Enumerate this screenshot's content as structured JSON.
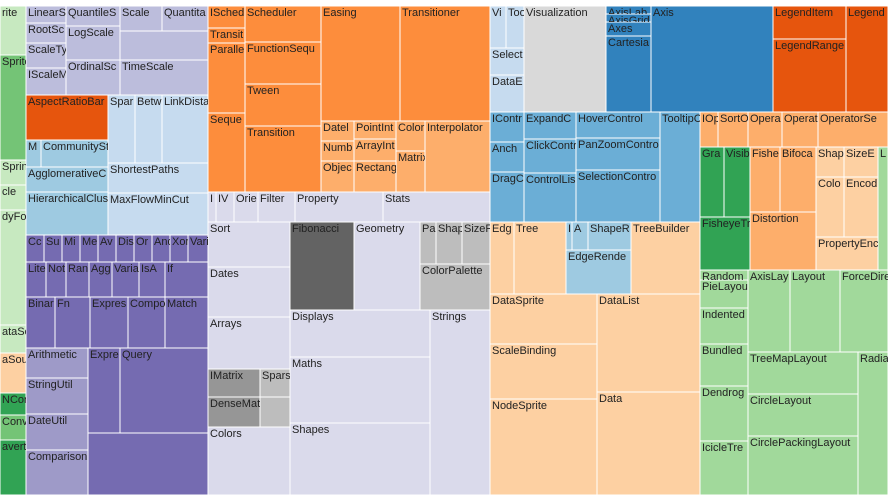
{
  "chart_data": {
    "type": "treemap",
    "nodes": [
      {
        "label": "rite",
        "color": "#c7e9c0",
        "value": 1274
      },
      {
        "label": "Sprite",
        "color": "#74c476",
        "value": 2730
      },
      {
        "label": "Spring",
        "color": "#c7e9c0",
        "value": 650
      },
      {
        "label": "cle",
        "color": "#c7e9c0",
        "value": 650
      },
      {
        "label": "dyFo",
        "color": "#c7e9c0",
        "value": 2990
      },
      {
        "label": "ataSo",
        "color": "#c7e9c0",
        "value": 728
      },
      {
        "label": "aSou",
        "color": "#fdd0a2",
        "value": 1040
      },
      {
        "label": "NCon",
        "color": "#31a354",
        "value": 572
      },
      {
        "label": "Conv",
        "color": "#74c476",
        "value": 650
      },
      {
        "label": "averte",
        "color": "#31a354",
        "value": 1430
      },
      {
        "label": "LinearS",
        "color": "#bcbddc",
        "value": 680
      },
      {
        "label": "RootSc",
        "color": "#bcbddc",
        "value": 800
      },
      {
        "label": "ScaleTy",
        "color": "#bcbddc",
        "value": 1000
      },
      {
        "label": "IScaleM",
        "color": "#bcbddc",
        "value": 1080
      },
      {
        "label": "QuantileS",
        "color": "#bcbddc",
        "value": 1080
      },
      {
        "label": "LogScale",
        "color": "#bcbddc",
        "value": 1836
      },
      {
        "label": "OrdinalSc",
        "color": "#bcbddc",
        "value": 1890
      },
      {
        "label": "Scale",
        "color": "#bcbddc",
        "value": 1050
      },
      {
        "label": "Quantita",
        "color": "#bcbddc",
        "value": 1150
      },
      {
        "label": "TimeScale",
        "color": "#bcbddc",
        "value": 3080
      },
      {
        "label": "AspectRatioBar",
        "color": "#e6550d",
        "value": 3690
      },
      {
        "label": "Spar",
        "color": "#c6dbef",
        "value": 1836
      },
      {
        "label": "Betw",
        "color": "#c6dbef",
        "value": 1836
      },
      {
        "label": "LinkDista",
        "color": "#c6dbef",
        "value": 3128
      },
      {
        "label": "ShortestPaths",
        "color": "#c6dbef",
        "value": 3000
      },
      {
        "label": "MaxFlowMinCut",
        "color": "#c6dbef",
        "value": 4200
      },
      {
        "label": "M",
        "color": "#9ecae1",
        "value": 405
      },
      {
        "label": "CommunitySt",
        "color": "#9ecae1",
        "value": 1809
      },
      {
        "label": "AgglomerativeC",
        "color": "#9ecae1",
        "value": 2050
      },
      {
        "label": "HierarchicalClus",
        "color": "#9ecae1",
        "value": 3526
      },
      {
        "label": "Cc",
        "color": "#756bb1",
        "value": 486
      },
      {
        "label": "Su",
        "color": "#756bb1",
        "value": 486
      },
      {
        "label": "Mi",
        "color": "#756bb1",
        "value": 486
      },
      {
        "label": "Me",
        "color": "#756bb1",
        "value": 486
      },
      {
        "label": "Av",
        "color": "#756bb1",
        "value": 486
      },
      {
        "label": "Dis",
        "color": "#756bb1",
        "value": 486
      },
      {
        "label": "Or",
        "color": "#756bb1",
        "value": 486
      },
      {
        "label": "And",
        "color": "#756bb1",
        "value": 486
      },
      {
        "label": "Xor",
        "color": "#756bb1",
        "value": 486
      },
      {
        "label": "Vari",
        "color": "#756bb1",
        "value": 540
      },
      {
        "label": "Lite",
        "color": "#756bb1",
        "value": 700
      },
      {
        "label": "Not",
        "color": "#756bb1",
        "value": 700
      },
      {
        "label": "Ran",
        "color": "#756bb1",
        "value": 805
      },
      {
        "label": "Agg",
        "color": "#756bb1",
        "value": 805
      },
      {
        "label": "Varia",
        "color": "#756bb1",
        "value": 945
      },
      {
        "label": "IsA",
        "color": "#756bb1",
        "value": 910
      },
      {
        "label": "If",
        "color": "#756bb1",
        "value": 1505
      },
      {
        "label": "Binar",
        "color": "#756bb1",
        "value": 1479
      },
      {
        "label": "Fn",
        "color": "#756bb1",
        "value": 1785
      },
      {
        "label": "Expres",
        "color": "#756bb1",
        "value": 1938
      },
      {
        "label": "Compo",
        "color": "#756bb1",
        "value": 1887
      },
      {
        "label": "Match",
        "color": "#756bb1",
        "value": 2193
      },
      {
        "label": "Arithmetic",
        "color": "#9e9ac8",
        "value": 1860
      },
      {
        "label": "StringUtil",
        "color": "#9e9ac8",
        "value": 2232
      },
      {
        "label": "DateUtil",
        "color": "#9e9ac8",
        "value": 2232
      },
      {
        "label": "Comparison",
        "color": "#9e9ac8",
        "value": 2790
      },
      {
        "label": "Expre",
        "color": "#756bb1",
        "value": 2720
      },
      {
        "label": "Query",
        "color": "#756bb1",
        "value": 7480
      },
      {
        "label": "ISched",
        "color": "#fd8d3c",
        "value": 814
      },
      {
        "label": "Transit",
        "color": "#fd8d3c",
        "value": 555
      },
      {
        "label": "Paralle",
        "color": "#fd8d3c",
        "value": 2590
      },
      {
        "label": "Seque",
        "color": "#fd8d3c",
        "value": 2923
      },
      {
        "label": "Scheduler",
        "color": "#fd8d3c",
        "value": 2736
      },
      {
        "label": "FunctionSequ",
        "color": "#fd8d3c",
        "value": 3192
      },
      {
        "label": "Tween",
        "color": "#fd8d3c",
        "value": 3192
      },
      {
        "label": "Transition",
        "color": "#fd8d3c",
        "value": 5016
      },
      {
        "label": "Easing",
        "color": "#fd8d3c",
        "value": 9085
      },
      {
        "label": "Transitioner",
        "color": "#fd8d3c",
        "value": 10350
      },
      {
        "label": "Datel",
        "color": "#fdae6b",
        "value": 660
      },
      {
        "label": "Numb",
        "color": "#fdae6b",
        "value": 660
      },
      {
        "label": "Objec",
        "color": "#fdae6b",
        "value": 1023
      },
      {
        "label": "PointInt",
        "color": "#fdae6b",
        "value": 756
      },
      {
        "label": "ArrayInt",
        "color": "#fdae6b",
        "value": 924
      },
      {
        "label": "Rectang",
        "color": "#fdae6b",
        "value": 1302
      },
      {
        "label": "ColorI",
        "color": "#fdae6b",
        "value": 870
      },
      {
        "label": "Matrix",
        "color": "#fdae6b",
        "value": 1189
      },
      {
        "label": "Interpolator",
        "color": "#fdae6b",
        "value": 4615
      },
      {
        "label": "I",
        "color": "#dadaeb",
        "value": 240
      },
      {
        "label": "IV",
        "color": "#dadaeb",
        "value": 540
      },
      {
        "label": "Orie",
        "color": "#dadaeb",
        "value": 720
      },
      {
        "label": "Filter",
        "color": "#dadaeb",
        "value": 1110
      },
      {
        "label": "Property",
        "color": "#dadaeb",
        "value": 2640
      },
      {
        "label": "Stats",
        "color": "#dadaeb",
        "value": 3210
      },
      {
        "label": "Sort",
        "color": "#dadaeb",
        "value": 3690
      },
      {
        "label": "Dates",
        "color": "#dadaeb",
        "value": 4100
      },
      {
        "label": "Arrays",
        "color": "#dadaeb",
        "value": 4264
      },
      {
        "label": "IMatrix",
        "color": "#969696",
        "value": 1456
      },
      {
        "label": "Spars",
        "color": "#bdbdbd",
        "value": 840
      },
      {
        "label": "DenseMat",
        "color": "#969696",
        "value": 1560
      },
      {
        "label": "Colors",
        "color": "#dadaeb",
        "value": 5576
      },
      {
        "label": "Fibonacci",
        "color": "#636363",
        "value": 5632
      },
      {
        "label": "Geometry",
        "color": "#dadaeb",
        "value": 5808
      },
      {
        "label": "Pa",
        "color": "#bdbdbd",
        "value": 672
      },
      {
        "label": "Shap",
        "color": "#bdbdbd",
        "value": 1092
      },
      {
        "label": "SizeF",
        "color": "#bdbdbd",
        "value": 1176
      },
      {
        "label": "ColorPalette",
        "color": "#bdbdbd",
        "value": 3220
      },
      {
        "label": "Displays",
        "color": "#dadaeb",
        "value": 6580
      },
      {
        "label": "Maths",
        "color": "#dadaeb",
        "value": 9240
      },
      {
        "label": "Shapes",
        "color": "#dadaeb",
        "value": 10080
      },
      {
        "label": "Strings",
        "color": "#dadaeb",
        "value": 11100
      },
      {
        "label": "Vi",
        "color": "#c6dbef",
        "value": 672
      },
      {
        "label": "Too",
        "color": "#c6dbef",
        "value": 756
      },
      {
        "label": "Visualization",
        "color": "#d9d9d9",
        "value": 8692
      },
      {
        "label": "Select",
        "color": "#c6dbef",
        "value": 918
      },
      {
        "label": "DataE",
        "color": "#c6dbef",
        "value": 1258
      },
      {
        "label": "AxisLab",
        "color": "#3182bd",
        "value": 360
      },
      {
        "label": "AxisGrid",
        "color": "#3182bd",
        "value": 360
      },
      {
        "label": "Axes",
        "color": "#3182bd",
        "value": 630
      },
      {
        "label": "Cartesia",
        "color": "#3182bd",
        "value": 3420
      },
      {
        "label": "Axis",
        "color": "#3182bd",
        "value": 12932
      },
      {
        "label": "LegendItem",
        "color": "#e6550d",
        "value": 2409
      },
      {
        "label": "LegendRange",
        "color": "#e6550d",
        "value": 5329
      },
      {
        "label": "Legend",
        "color": "#e6550d",
        "value": 4452
      },
      {
        "label": "IContr",
        "color": "#6baed6",
        "value": 1020
      },
      {
        "label": "Anch",
        "color": "#6baed6",
        "value": 1020
      },
      {
        "label": "DragC",
        "color": "#6baed6",
        "value": 1700
      },
      {
        "label": "ExpandC",
        "color": "#6baed6",
        "value": 1404
      },
      {
        "label": "ClickContr",
        "color": "#6baed6",
        "value": 1768
      },
      {
        "label": "ControlLis",
        "color": "#6baed6",
        "value": 2548
      },
      {
        "label": "HoverControl",
        "color": "#6baed6",
        "value": 2184
      },
      {
        "label": "PanZoomContro",
        "color": "#6baed6",
        "value": 2688
      },
      {
        "label": "SelectionContro",
        "color": "#6baed6",
        "value": 4368
      },
      {
        "label": "TooltipC",
        "color": "#6baed6",
        "value": 4400
      },
      {
        "label": "Edg",
        "color": "#fdd0a2",
        "value": 1728
      },
      {
        "label": "Tree",
        "color": "#fdd0a2",
        "value": 3744
      },
      {
        "label": "I",
        "color": "#9ecae1",
        "value": 168
      },
      {
        "label": "A",
        "color": "#9ecae1",
        "value": 448
      },
      {
        "label": "ShapeR",
        "color": "#9ecae1",
        "value": 1204
      },
      {
        "label": "EdgeRende",
        "color": "#9ecae1",
        "value": 2860
      },
      {
        "label": "TreeBuilder",
        "color": "#fdd0a2",
        "value": 4968
      },
      {
        "label": "DataSprite",
        "color": "#fdd0a2",
        "value": 5350
      },
      {
        "label": "ScaleBinding",
        "color": "#fdd0a2",
        "value": 5885
      },
      {
        "label": "NodeSprite",
        "color": "#fdd0a2",
        "value": 10272
      },
      {
        "label": "DataList",
        "color": "#fdd0a2",
        "value": 10094
      },
      {
        "label": "Data",
        "color": "#fdd0a2",
        "value": 10609
      },
      {
        "label": "IOp",
        "color": "#fdae6b",
        "value": 630
      },
      {
        "label": "SortO",
        "color": "#fdae6b",
        "value": 1050
      },
      {
        "label": "Opera",
        "color": "#fdae6b",
        "value": 1190
      },
      {
        "label": "Operat",
        "color": "#fdae6b",
        "value": 1260
      },
      {
        "label": "OperatorSe",
        "color": "#fdae6b",
        "value": 2450
      },
      {
        "label": "Gra",
        "color": "#31a354",
        "value": 1680
      },
      {
        "label": "Visib",
        "color": "#31a354",
        "value": 1820
      },
      {
        "label": "Fishe",
        "color": "#fdae6b",
        "value": 1950
      },
      {
        "label": "Bifoca",
        "color": "#fdae6b",
        "value": 2340
      },
      {
        "label": "Shap",
        "color": "#fdd0a2",
        "value": 840
      },
      {
        "label": "SizeE",
        "color": "#fdd0a2",
        "value": 1020
      },
      {
        "label": "Colo",
        "color": "#fdd0a2",
        "value": 1680
      },
      {
        "label": "Encod",
        "color": "#fdd0a2",
        "value": 2040
      },
      {
        "label": "L",
        "color": "#a1d99b",
        "value": 1230
      },
      {
        "label": "FisheyeTr",
        "color": "#31a354",
        "value": 2650
      },
      {
        "label": "Distortion",
        "color": "#fdae6b",
        "value": 3828
      },
      {
        "label": "PropertyEnc",
        "color": "#fdd0a2",
        "value": 2046
      },
      {
        "label": "Random",
        "color": "#a1d99b",
        "value": 480
      },
      {
        "label": "PieLayou",
        "color": "#a1d99b",
        "value": 1344
      },
      {
        "label": "Indented",
        "color": "#a1d99b",
        "value": 1728
      },
      {
        "label": "Bundled",
        "color": "#a1d99b",
        "value": 2016
      },
      {
        "label": "Dendrog",
        "color": "#a1d99b",
        "value": 2640
      },
      {
        "label": "IcicleTre",
        "color": "#a1d99b",
        "value": 2592
      },
      {
        "label": "AxisLay",
        "color": "#a1d99b",
        "value": 3444
      },
      {
        "label": "Layout",
        "color": "#a1d99b",
        "value": 4100
      },
      {
        "label": "ForceDire",
        "color": "#a1d99b",
        "value": 3936
      },
      {
        "label": "TreeMapLayout",
        "color": "#a1d99b",
        "value": 4620
      },
      {
        "label": "CircleLayout",
        "color": "#a1d99b",
        "value": 4620
      },
      {
        "label": "CirclePackingLayout",
        "color": "#a1d99b",
        "value": 6490
      },
      {
        "label": "Radia",
        "color": "#a1d99b",
        "value": 4290
      }
    ]
  }
}
